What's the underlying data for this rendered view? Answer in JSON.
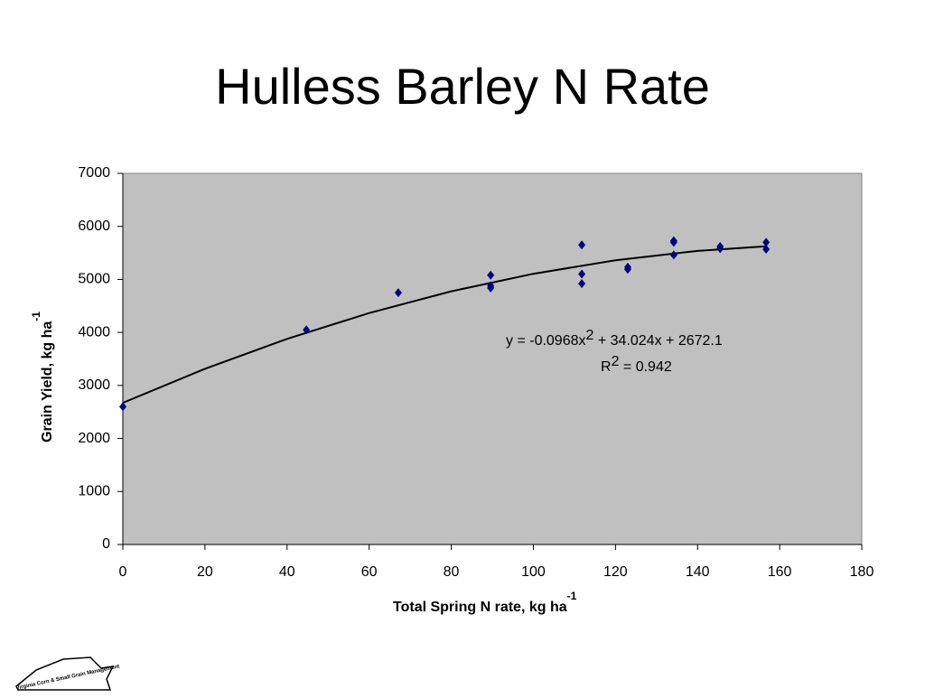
{
  "chart_data": {
    "type": "scatter",
    "title": "Hulless Barley N Rate",
    "xlabel": [
      "Total Spring N rate, kg ha",
      "-1"
    ],
    "ylabel": [
      "Grain Yield, kg ha",
      "-1"
    ],
    "equation": [
      "y = -0.0968x",
      "2",
      " + 34.024x + 2672.1"
    ],
    "r_squared": [
      "R",
      "2",
      " = 0.942"
    ],
    "logo": "Virginia Corn & Small Grain Management",
    "xlim": [
      0,
      180
    ],
    "xticks": [
      0,
      20,
      40,
      60,
      80,
      100,
      120,
      140,
      160,
      180
    ],
    "ylim": [
      0,
      7000
    ],
    "yticks": [
      0,
      1000,
      2000,
      3000,
      4000,
      5000,
      6000,
      7000
    ],
    "plot_background": "#c0c0c0",
    "series": [
      {
        "color": "#000080",
        "x": [
          0,
          44.7,
          67.1,
          89.6,
          89.6,
          89.6,
          111.8,
          111.8,
          111.8,
          123,
          123,
          134.2,
          134.2,
          134.2,
          145.5,
          145.5,
          156.7,
          156.7
        ],
        "values": [
          2600,
          4050,
          4750,
          5080,
          4880,
          4840,
          5650,
          5100,
          4920,
          5230,
          5190,
          5730,
          5700,
          5460,
          5620,
          5580,
          5700,
          5570
        ]
      }
    ],
    "trendline": {
      "color": "#000000",
      "x": [
        0,
        20,
        40,
        60,
        80,
        100,
        120,
        140,
        156.7
      ],
      "values": [
        2672,
        3314,
        3878,
        4365,
        4775,
        5106,
        5361,
        5538,
        5624
      ]
    }
  }
}
